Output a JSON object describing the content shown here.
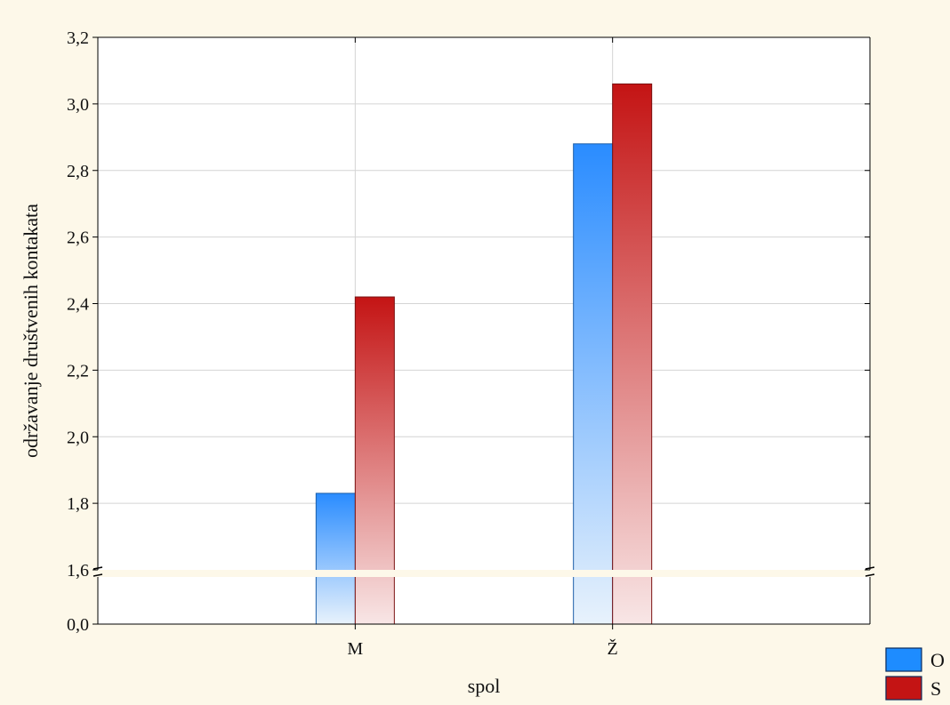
{
  "chart_data": {
    "type": "bar",
    "categories": [
      "M",
      "Ž"
    ],
    "series": [
      {
        "name": "O",
        "values": [
          1.83,
          2.88
        ],
        "color": "#1e8cff"
      },
      {
        "name": "S",
        "values": [
          2.42,
          3.06
        ],
        "color": "#c41414"
      }
    ],
    "xlabel": "spol",
    "ylabel": "održavanje društvenih kontakata",
    "ylim": [
      1.6,
      3.2
    ],
    "broken_axis": {
      "lower_tick": "0,0",
      "break_value": 1.6
    },
    "y_ticks": [
      "1,6",
      "1,8",
      "2,0",
      "2,2",
      "2,4",
      "2,6",
      "2,8",
      "3,0",
      "3,2"
    ],
    "grid": true,
    "legend_position": "bottom-right"
  }
}
